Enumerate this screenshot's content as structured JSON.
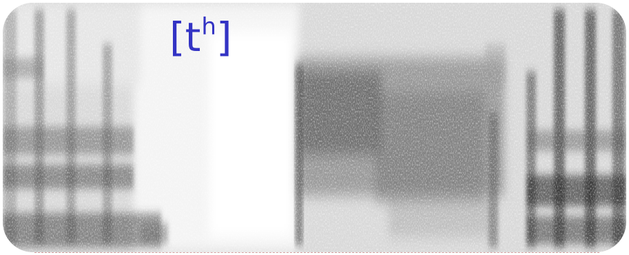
{
  "label": {
    "open_bracket": "[",
    "base": "t",
    "superscript": "h",
    "close_bracket": "]"
  },
  "colors": {
    "label": "#3333c4",
    "background": "#ffffff"
  }
}
